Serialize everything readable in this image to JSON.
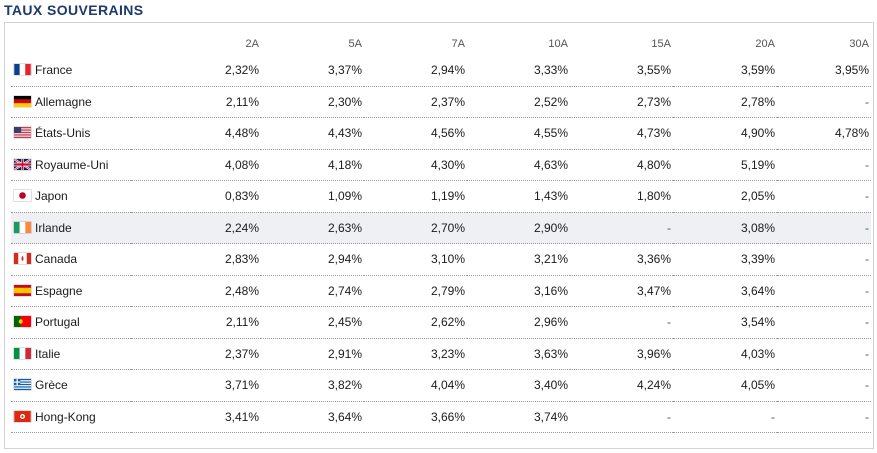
{
  "title": "TAUX SOUVERAINS",
  "columns": [
    "2A",
    "5A",
    "7A",
    "10A",
    "15A",
    "20A",
    "30A"
  ],
  "rows": [
    {
      "country": "France",
      "flag": "france-flag",
      "values": [
        "2,32%",
        "3,37%",
        "2,94%",
        "3,33%",
        "3,55%",
        "3,59%",
        "3,95%"
      ]
    },
    {
      "country": "Allemagne",
      "flag": "germany-flag",
      "values": [
        "2,11%",
        "2,30%",
        "2,37%",
        "2,52%",
        "2,73%",
        "2,78%",
        "-"
      ]
    },
    {
      "country": "États-Unis",
      "flag": "usa-flag",
      "values": [
        "4,48%",
        "4,43%",
        "4,56%",
        "4,55%",
        "4,73%",
        "4,90%",
        "4,78%"
      ]
    },
    {
      "country": "Royaume-Uni",
      "flag": "uk-flag",
      "values": [
        "4,08%",
        "4,18%",
        "4,30%",
        "4,63%",
        "4,80%",
        "5,19%",
        "-"
      ]
    },
    {
      "country": "Japon",
      "flag": "japan-flag",
      "values": [
        "0,83%",
        "1,09%",
        "1,19%",
        "1,43%",
        "1,80%",
        "2,05%",
        "-"
      ]
    },
    {
      "country": "Irlande",
      "flag": "ireland-flag",
      "values": [
        "2,24%",
        "2,63%",
        "2,70%",
        "2,90%",
        "-",
        "3,08%",
        "-"
      ]
    },
    {
      "country": "Canada",
      "flag": "canada-flag",
      "values": [
        "2,83%",
        "2,94%",
        "3,10%",
        "3,21%",
        "3,36%",
        "3,39%",
        "-"
      ]
    },
    {
      "country": "Espagne",
      "flag": "spain-flag",
      "values": [
        "2,48%",
        "2,74%",
        "2,79%",
        "3,16%",
        "3,47%",
        "3,64%",
        "-"
      ]
    },
    {
      "country": "Portugal",
      "flag": "portugal-flag",
      "values": [
        "2,11%",
        "2,45%",
        "2,62%",
        "2,96%",
        "-",
        "3,54%",
        "-"
      ]
    },
    {
      "country": "Italie",
      "flag": "italy-flag",
      "values": [
        "2,37%",
        "2,91%",
        "3,23%",
        "3,63%",
        "3,96%",
        "4,03%",
        "-"
      ]
    },
    {
      "country": "Grèce",
      "flag": "greece-flag",
      "values": [
        "3,71%",
        "3,82%",
        "4,04%",
        "3,40%",
        "4,24%",
        "4,05%",
        "-"
      ]
    },
    {
      "country": "Hong-Kong",
      "flag": "hong-kong-flag",
      "values": [
        "3,41%",
        "3,64%",
        "3,66%",
        "3,74%",
        "-",
        "-",
        "-"
      ]
    }
  ],
  "highlighted_row": "Irlande"
}
